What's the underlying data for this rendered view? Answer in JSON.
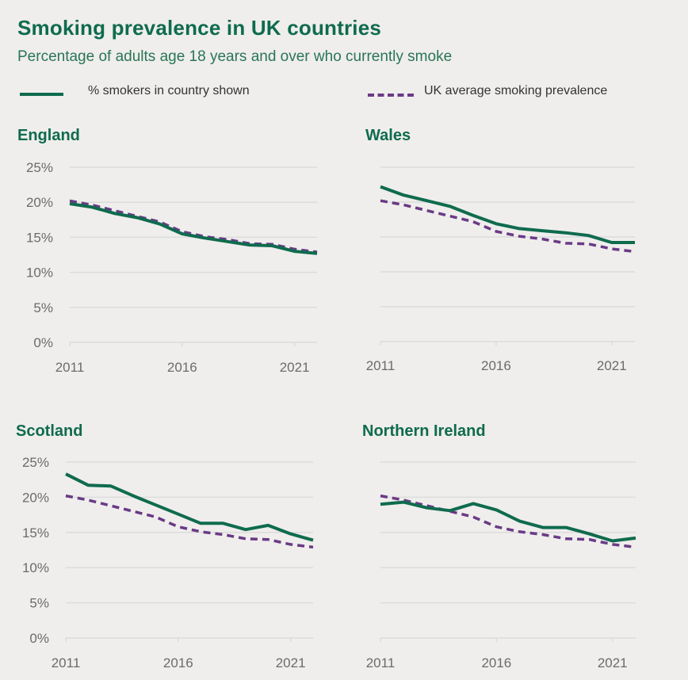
{
  "header": {
    "title": "Smoking prevalence in UK countries",
    "subtitle": "Percentage of adults age 18 years and over who currently smoke"
  },
  "colors": {
    "country": "#0f6b4e",
    "uk_average": "#6a3a86",
    "title": "#0f6b4e",
    "gridline": "#dcdcdc",
    "tick_label": "#6b6b6b",
    "background": "#efeeec"
  },
  "legend": [
    {
      "label": "% smokers in country shown",
      "style": "solid",
      "series": "country"
    },
    {
      "label": "UK average smoking prevalence",
      "style": "dashed",
      "series": "uk_average"
    }
  ],
  "chart_data": [
    {
      "type": "line",
      "title": "England",
      "x": [
        2011,
        2012,
        2013,
        2014,
        2015,
        2016,
        2017,
        2018,
        2019,
        2020,
        2021,
        2022
      ],
      "xticks": [
        "2011",
        "2016",
        "2021"
      ],
      "yticks": [
        "0%",
        "5%",
        "10%",
        "15%",
        "20%",
        "25%"
      ],
      "ylim": [
        0,
        25
      ],
      "xlim": [
        2011,
        2022
      ],
      "grid": true,
      "series": [
        {
          "name": "% smokers in country shown",
          "style": "solid",
          "values": [
            19.8,
            19.3,
            18.4,
            17.8,
            16.9,
            15.5,
            14.9,
            14.4,
            13.9,
            13.8,
            13.0,
            12.7
          ]
        },
        {
          "name": "UK average smoking prevalence",
          "style": "dashed",
          "values": [
            20.2,
            19.6,
            18.8,
            18.0,
            17.2,
            15.8,
            15.1,
            14.7,
            14.1,
            14.0,
            13.3,
            12.9
          ]
        }
      ]
    },
    {
      "type": "line",
      "title": "Wales",
      "x": [
        2011,
        2012,
        2013,
        2014,
        2015,
        2016,
        2017,
        2018,
        2019,
        2020,
        2021,
        2022
      ],
      "xticks": [
        "2011",
        "2016",
        "2021"
      ],
      "yticks": [],
      "ylim": [
        0,
        25
      ],
      "xlim": [
        2011,
        2022
      ],
      "grid": true,
      "series": [
        {
          "name": "% smokers in country shown",
          "style": "solid",
          "values": [
            22.2,
            21.0,
            20.2,
            19.4,
            18.1,
            16.9,
            16.2,
            15.9,
            15.6,
            15.2,
            14.2,
            14.2
          ]
        },
        {
          "name": "UK average smoking prevalence",
          "style": "dashed",
          "values": [
            20.2,
            19.6,
            18.8,
            18.0,
            17.2,
            15.8,
            15.1,
            14.7,
            14.1,
            14.0,
            13.3,
            12.9
          ]
        }
      ]
    },
    {
      "type": "line",
      "title": "Scotland",
      "x": [
        2011,
        2012,
        2013,
        2014,
        2015,
        2016,
        2017,
        2018,
        2019,
        2020,
        2021,
        2022
      ],
      "xticks": [
        "2011",
        "2016",
        "2021"
      ],
      "yticks": [
        "0%",
        "5%",
        "10%",
        "15%",
        "20%",
        "25%"
      ],
      "ylim": [
        0,
        25
      ],
      "xlim": [
        2011,
        2022
      ],
      "grid": true,
      "series": [
        {
          "name": "% smokers in country shown",
          "style": "solid",
          "values": [
            23.3,
            21.7,
            21.6,
            20.2,
            18.9,
            17.6,
            16.3,
            16.3,
            15.4,
            16.0,
            14.8,
            13.9
          ]
        },
        {
          "name": "UK average smoking prevalence",
          "style": "dashed",
          "values": [
            20.2,
            19.6,
            18.8,
            18.0,
            17.2,
            15.8,
            15.1,
            14.7,
            14.1,
            14.0,
            13.3,
            12.9
          ]
        }
      ]
    },
    {
      "type": "line",
      "title": "Northern Ireland",
      "x": [
        2011,
        2012,
        2013,
        2014,
        2015,
        2016,
        2017,
        2018,
        2019,
        2020,
        2021,
        2022
      ],
      "xticks": [
        "2011",
        "2016",
        "2021"
      ],
      "yticks": [],
      "ylim": [
        0,
        25
      ],
      "xlim": [
        2011,
        2022
      ],
      "grid": true,
      "series": [
        {
          "name": "% smokers in country shown",
          "style": "solid",
          "values": [
            19.0,
            19.3,
            18.5,
            18.1,
            19.1,
            18.2,
            16.6,
            15.7,
            15.7,
            14.8,
            13.8,
            14.2
          ]
        },
        {
          "name": "UK average smoking prevalence",
          "style": "dashed",
          "values": [
            20.2,
            19.6,
            18.8,
            18.0,
            17.2,
            15.8,
            15.1,
            14.7,
            14.1,
            14.0,
            13.3,
            12.9
          ]
        }
      ]
    }
  ]
}
